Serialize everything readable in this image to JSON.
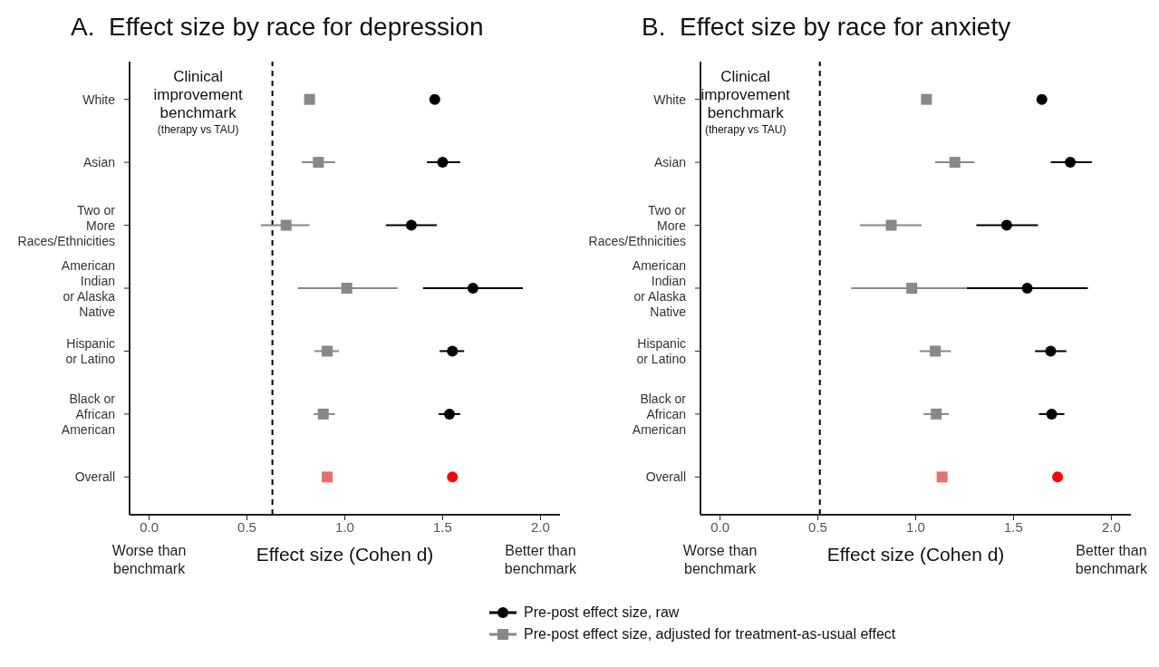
{
  "chart_data": [
    {
      "type": "scatter",
      "orientation": "horizontal",
      "title": "A.  Effect size by race for depression",
      "xlabel": "Effect size (Cohen d)",
      "categories": [
        "White",
        "Asian",
        "Two or\nMore\nRaces/Ethnicities",
        "American\nIndian\nor Alaska\nNative",
        "Hispanic\nor Latino",
        "Black or\nAfrican\nAmerican",
        "Overall"
      ],
      "xlim": [
        -0.1,
        2.1
      ],
      "xticks": [
        {
          "value": 0,
          "label": "0.0"
        },
        {
          "value": 0.5,
          "label": "0.5"
        },
        {
          "value": 1,
          "label": "1.0"
        },
        {
          "value": 1.5,
          "label": "1.5"
        },
        {
          "value": 2,
          "label": "2.0"
        }
      ],
      "series": [
        {
          "color": "#000000",
          "marker": "circle",
          "colors": [
            "#000000",
            "#000000",
            "#000000",
            "#000000",
            "#000000",
            "#000000",
            "#ff0000"
          ],
          "values": [
            1.46,
            1.5,
            1.34,
            1.655,
            1.55,
            1.535,
            1.55
          ],
          "errors": [
            [
              1.44,
              1.48
            ],
            [
              1.42,
              1.59
            ],
            [
              1.21,
              1.47
            ],
            [
              1.4,
              1.91
            ],
            [
              1.485,
              1.61
            ],
            [
              1.48,
              1.59
            ],
            null
          ]
        },
        {
          "color": "#888888",
          "marker": "square",
          "colors": [
            "#888888",
            "#888888",
            "#888888",
            "#888888",
            "#888888",
            "#888888",
            "#e87070"
          ],
          "values": [
            0.82,
            0.865,
            0.7,
            1.01,
            0.91,
            0.89,
            0.91
          ],
          "errors": [
            [
              0.8,
              0.84
            ],
            [
              0.78,
              0.95
            ],
            [
              0.57,
              0.82
            ],
            [
              0.76,
              1.27
            ],
            [
              0.845,
              0.97
            ],
            [
              0.84,
              0.95
            ],
            null
          ]
        }
      ],
      "ref_lines": [
        {
          "axis": "x",
          "value": 0.63,
          "label": "Clinical\nimprovement\nbenchmark",
          "color": "#000000",
          "line_style": "dashed"
        }
      ],
      "annotations": [
        "(therapy vs TAU)",
        "Worse than\nbenchmark",
        "Better than\nbenchmark"
      ]
    },
    {
      "type": "scatter",
      "orientation": "horizontal",
      "title": "B.  Effect size by race for anxiety",
      "xlabel": "Effect size (Cohen d)",
      "legend": "bottom",
      "categories": [
        "White",
        "Asian",
        "Two or\nMore\nRaces/Ethnicities",
        "American\nIndian\nor Alaska\nNative",
        "Hispanic\nor Latino",
        "Black or\nAfrican\nAmerican",
        "Overall"
      ],
      "xlim": [
        -0.1,
        2.1
      ],
      "xticks": [
        {
          "value": 0,
          "label": "0.0"
        },
        {
          "value": 0.5,
          "label": "0.5"
        },
        {
          "value": 1,
          "label": "1.0"
        },
        {
          "value": 1.5,
          "label": "1.5"
        },
        {
          "value": 2,
          "label": "2.0"
        }
      ],
      "series": [
        {
          "name": "Pre-post effect size, raw",
          "color": "#000000",
          "marker": "circle",
          "colors": [
            "#000000",
            "#000000",
            "#000000",
            "#000000",
            "#000000",
            "#000000",
            "#ff0000"
          ],
          "values": [
            1.645,
            1.79,
            1.465,
            1.57,
            1.69,
            1.695,
            1.725
          ],
          "errors": [
            [
              1.625,
              1.665
            ],
            [
              1.69,
              1.9
            ],
            [
              1.31,
              1.625
            ],
            [
              1.26,
              1.88
            ],
            [
              1.61,
              1.77
            ],
            [
              1.63,
              1.76
            ],
            null
          ]
        },
        {
          "name": "Pre-post effect size, adjusted for treatment-as-usual effect",
          "color": "#888888",
          "marker": "square",
          "colors": [
            "#888888",
            "#888888",
            "#888888",
            "#888888",
            "#888888",
            "#888888",
            "#e87070"
          ],
          "values": [
            1.055,
            1.2,
            0.875,
            0.98,
            1.1,
            1.105,
            1.135
          ],
          "errors": [
            [
              1.03,
              1.08
            ],
            [
              1.1,
              1.3
            ],
            [
              0.715,
              1.03
            ],
            [
              0.67,
              1.26
            ],
            [
              1.02,
              1.18
            ],
            [
              1.04,
              1.17
            ],
            null
          ]
        }
      ],
      "ref_lines": [
        {
          "axis": "x",
          "value": 0.51,
          "label": "Clinical\nimprovement\nbenchmark",
          "color": "#000000",
          "line_style": "dashed"
        }
      ],
      "annotations": [
        "(therapy vs TAU)",
        "Worse than\nbenchmark",
        "Better than\nbenchmark"
      ]
    }
  ]
}
